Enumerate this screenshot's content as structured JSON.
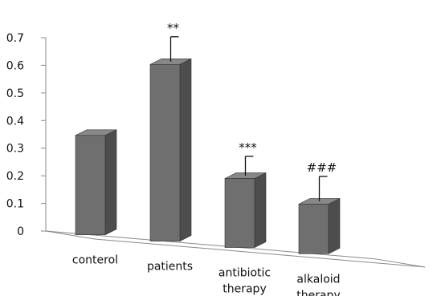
{
  "chart_data": {
    "type": "bar",
    "categories": [
      [
        "conterol"
      ],
      [
        "patients"
      ],
      [
        "antibiotic",
        "therapy"
      ],
      [
        "alkaloid",
        "therapy"
      ]
    ],
    "values": [
      0.36,
      0.64,
      0.25,
      0.18
    ],
    "error_bars": [
      null,
      0.09,
      0.07,
      0.09
    ],
    "significance": [
      "",
      "**",
      "***",
      "###"
    ],
    "ylim": [
      0,
      0.7
    ],
    "yticks": [
      "0",
      "0.1",
      "0.2",
      "0.3",
      "0.4",
      "0.5",
      "0.6",
      "0.7"
    ],
    "title": "",
    "xlabel": "",
    "ylabel": "",
    "grid": false,
    "legend": "none",
    "bar_front_color": "#6f6f6f",
    "bar_side_color": "#4d4d4d",
    "bar_top_color": "#888888"
  }
}
